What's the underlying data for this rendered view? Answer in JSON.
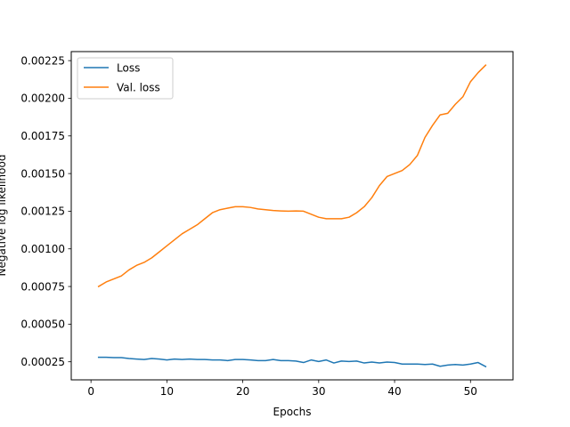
{
  "chart_data": {
    "type": "line",
    "title": "",
    "xlabel": "Epochs",
    "ylabel": "Negative log likelihood",
    "xlim": [
      -2.6,
      55.6
    ],
    "ylim": [
      0.00013,
      0.00231
    ],
    "xticks": [
      0,
      10,
      20,
      30,
      40,
      50
    ],
    "xtick_labels": [
      "0",
      "10",
      "20",
      "30",
      "40",
      "50"
    ],
    "yticks": [
      0.00025,
      0.0005,
      0.00075,
      0.001,
      0.00125,
      0.0015,
      0.00175,
      0.002,
      0.00225
    ],
    "ytick_labels": [
      "0.00025",
      "0.00050",
      "0.00075",
      "0.00100",
      "0.00125",
      "0.00150",
      "0.00175",
      "0.00200",
      "0.00225"
    ],
    "grid": false,
    "legend_position": "top-left",
    "x": [
      1,
      2,
      3,
      4,
      5,
      6,
      7,
      8,
      9,
      10,
      11,
      12,
      13,
      14,
      15,
      16,
      17,
      18,
      19,
      20,
      21,
      22,
      23,
      24,
      25,
      26,
      27,
      28,
      29,
      30,
      31,
      32,
      33,
      34,
      35,
      36,
      37,
      38,
      39,
      40,
      41,
      42,
      43,
      44,
      45,
      46,
      47,
      48,
      49,
      50,
      51,
      52
    ],
    "series": [
      {
        "name": "Loss",
        "color": "#1f77b4",
        "values": [
          0.00028,
          0.00028,
          0.000278,
          0.000278,
          0.000272,
          0.000268,
          0.000265,
          0.000272,
          0.000268,
          0.000262,
          0.000268,
          0.000265,
          0.000268,
          0.000265,
          0.000265,
          0.000262,
          0.000262,
          0.000258,
          0.000265,
          0.000265,
          0.000262,
          0.000258,
          0.000258,
          0.000265,
          0.000258,
          0.000258,
          0.000255,
          0.000245,
          0.000262,
          0.000252,
          0.000262,
          0.000242,
          0.000255,
          0.000252,
          0.000255,
          0.000242,
          0.000248,
          0.000242,
          0.000248,
          0.000245,
          0.000235,
          0.000235,
          0.000235,
          0.000232,
          0.000235,
          0.00022,
          0.000228,
          0.000232,
          0.000228,
          0.000235,
          0.000245,
          0.000218
        ]
      },
      {
        "name": "Val. loss",
        "color": "#ff7f0e",
        "values": [
          0.00075,
          0.00078,
          0.0008,
          0.00082,
          0.00086,
          0.00089,
          0.00091,
          0.00094,
          0.00098,
          0.00102,
          0.00106,
          0.0011,
          0.00113,
          0.00116,
          0.0012,
          0.00124,
          0.00126,
          0.00127,
          0.00128,
          0.00128,
          0.001275,
          0.001265,
          0.00126,
          0.001255,
          0.001252,
          0.00125,
          0.001252,
          0.00125,
          0.00123,
          0.00121,
          0.0012,
          0.0012,
          0.0012,
          0.00121,
          0.00124,
          0.00128,
          0.00134,
          0.00142,
          0.00148,
          0.0015,
          0.00152,
          0.00156,
          0.00162,
          0.00174,
          0.00182,
          0.00189,
          0.0019,
          0.00196,
          0.00201,
          0.00211,
          0.00217,
          0.00222
        ]
      }
    ]
  }
}
